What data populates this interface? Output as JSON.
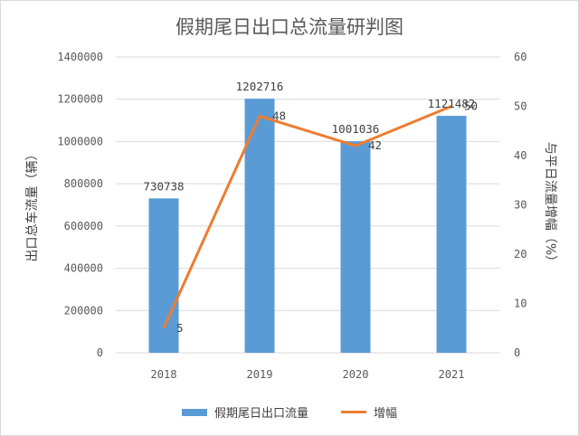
{
  "chart_data": {
    "type": "bar",
    "title": "假期尾日出口总流量研判图",
    "categories": [
      "2018",
      "2019",
      "2020",
      "2021"
    ],
    "series": [
      {
        "name": "假期尾日出口流量",
        "type": "bar",
        "axis": "left",
        "values": [
          730738,
          1202716,
          1001036,
          1121482
        ],
        "labels": [
          "730738",
          "1202716",
          "1001036",
          "1121482"
        ],
        "color": "#5b9bd5"
      },
      {
        "name": "增幅",
        "type": "line",
        "axis": "right",
        "values": [
          5,
          48,
          42,
          50
        ],
        "labels": [
          "5",
          "48",
          "42",
          "50"
        ],
        "color": "#ed7d31"
      }
    ],
    "ylabel": "出口总车流量（辆）",
    "y2label": "与平日流量增幅（%）",
    "ylim": [
      0,
      1400000
    ],
    "y2lim": [
      0,
      60
    ],
    "yticks": [
      "0",
      "200000",
      "400000",
      "600000",
      "800000",
      "1000000",
      "1200000",
      "1400000"
    ],
    "y2ticks": [
      "0",
      "10",
      "20",
      "30",
      "40",
      "50",
      "60"
    ],
    "grid": true,
    "legend_position": "bottom"
  }
}
